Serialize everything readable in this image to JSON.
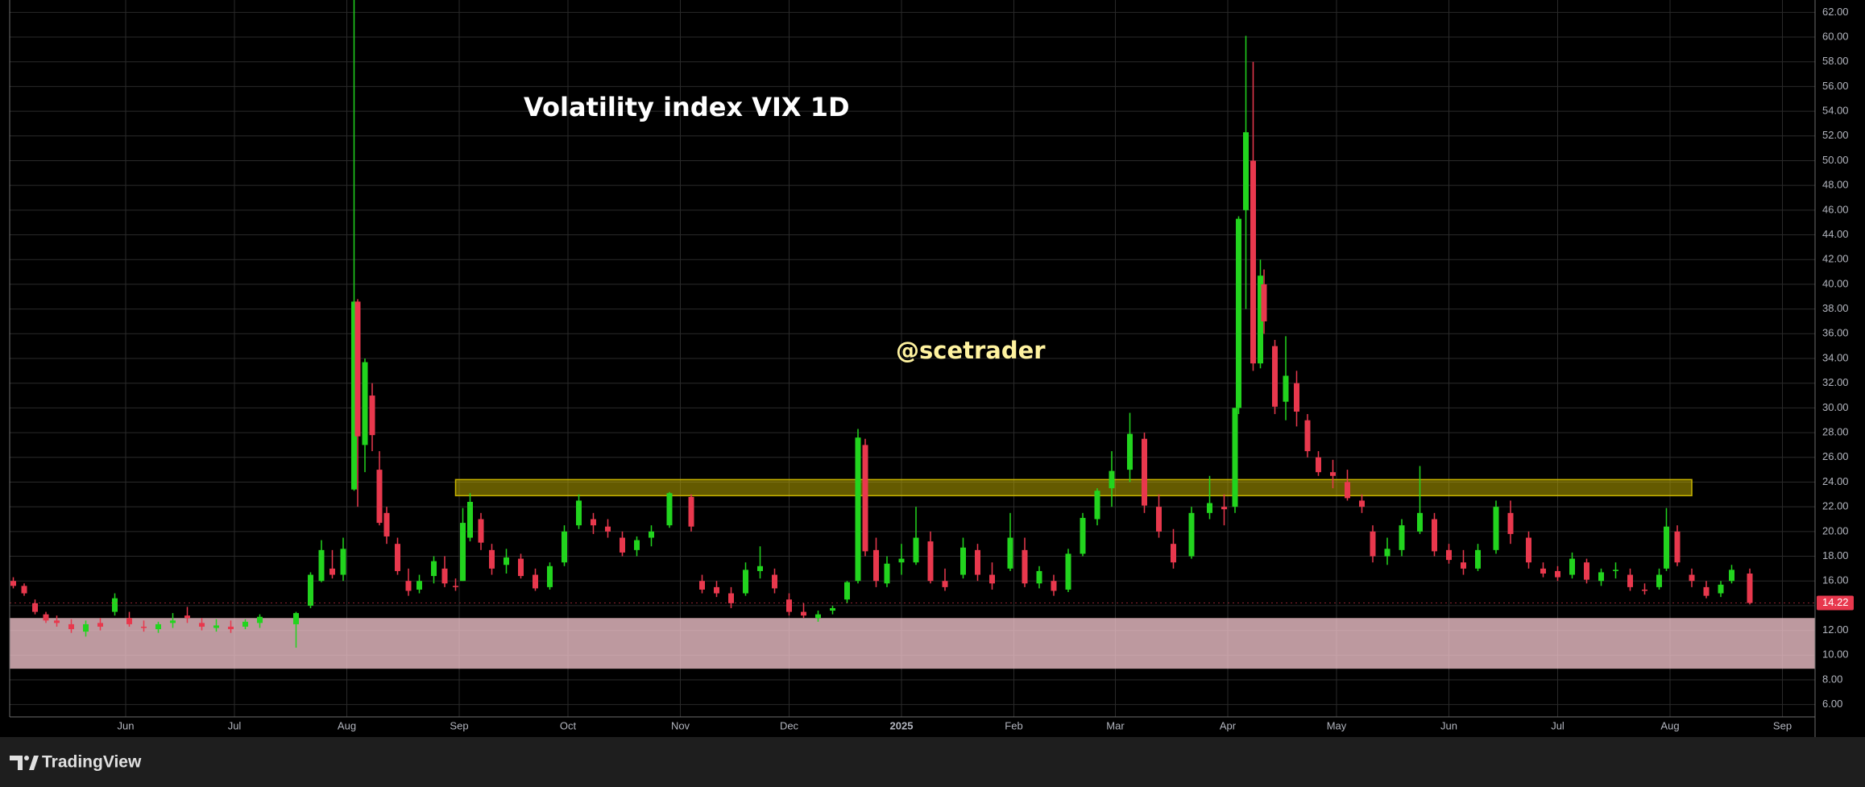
{
  "chart_data": {
    "type": "candlestick",
    "title": "Volatility index VIX 1D",
    "annotation": "@scetrader",
    "brand": "TradingView",
    "up_color": "#22d41e",
    "down_color": "#e8384d",
    "grid": true,
    "xlim": [
      -1,
      497
    ],
    "xticks": [
      {
        "value": 31,
        "label": "Jun"
      },
      {
        "value": 61,
        "label": "Jul"
      },
      {
        "value": 92,
        "label": "Aug"
      },
      {
        "value": 123,
        "label": "Sep"
      },
      {
        "value": 153,
        "label": "Oct"
      },
      {
        "value": 184,
        "label": "Nov"
      },
      {
        "value": 214,
        "label": "Dec"
      },
      {
        "value": 245,
        "label": "2025"
      },
      {
        "value": 276,
        "label": "Feb"
      },
      {
        "value": 304,
        "label": "Mar"
      },
      {
        "value": 335,
        "label": "Apr"
      },
      {
        "value": 365,
        "label": "May"
      },
      {
        "value": 396,
        "label": "Jun"
      },
      {
        "value": 426,
        "label": "Jul"
      },
      {
        "value": 457,
        "label": "Aug"
      },
      {
        "value": 488,
        "label": "Sep"
      }
    ],
    "ylim": [
      5,
      63
    ],
    "yticks": [
      {
        "value": 6,
        "label": "6.00"
      },
      {
        "value": 8,
        "label": "8.00"
      },
      {
        "value": 10,
        "label": "10.00"
      },
      {
        "value": 12,
        "label": "12.00"
      },
      {
        "value": 14,
        "label": "14.00"
      },
      {
        "value": 16,
        "label": "16.00"
      },
      {
        "value": 18,
        "label": "18.00"
      },
      {
        "value": 20,
        "label": "20.00"
      },
      {
        "value": 22,
        "label": "22.00"
      },
      {
        "value": 24,
        "label": "24.00"
      },
      {
        "value": 26,
        "label": "26.00"
      },
      {
        "value": 28,
        "label": "28.00"
      },
      {
        "value": 30,
        "label": "30.00"
      },
      {
        "value": 32,
        "label": "32.00"
      },
      {
        "value": 34,
        "label": "34.00"
      },
      {
        "value": 36,
        "label": "36.00"
      },
      {
        "value": 38,
        "label": "38.00"
      },
      {
        "value": 40,
        "label": "40.00"
      },
      {
        "value": 42,
        "label": "42.00"
      },
      {
        "value": 44,
        "label": "44.00"
      },
      {
        "value": 46,
        "label": "46.00"
      },
      {
        "value": 48,
        "label": "48.00"
      },
      {
        "value": 50,
        "label": "50.00"
      },
      {
        "value": 52,
        "label": "52.00"
      },
      {
        "value": 54,
        "label": "54.00"
      },
      {
        "value": 56,
        "label": "56.00"
      },
      {
        "value": 58,
        "label": "58.00"
      },
      {
        "value": 60,
        "label": "60.00"
      },
      {
        "value": 62,
        "label": "62.00"
      }
    ],
    "zones": [
      {
        "x": [
          122,
          463
        ],
        "y": [
          22.9,
          24.2
        ],
        "color": "#c8b400"
      },
      {
        "y": [
          8.9,
          13.0
        ],
        "color": "#f2c4cc"
      }
    ],
    "x": [
      0,
      3,
      6,
      9,
      12,
      16,
      20,
      24,
      28,
      32,
      36,
      40,
      44,
      48,
      52,
      56,
      60,
      64,
      68,
      78,
      82,
      85,
      88,
      91,
      94,
      95,
      97,
      99,
      101,
      103,
      106,
      109,
      112,
      116,
      119,
      122,
      124,
      126,
      129,
      132,
      136,
      140,
      144,
      148,
      152,
      156,
      160,
      164,
      168,
      172,
      176,
      181,
      187,
      190,
      194,
      198,
      202,
      206,
      210,
      214,
      218,
      222,
      226,
      230,
      233,
      235,
      238,
      241,
      245,
      249,
      253,
      257,
      262,
      266,
      270,
      275,
      279,
      283,
      287,
      291,
      295,
      299,
      303,
      308,
      312,
      316,
      320,
      325,
      330,
      334,
      337,
      338,
      340,
      342,
      344,
      345,
      348,
      351,
      354,
      357,
      360,
      364,
      368,
      372,
      375,
      379,
      383,
      388,
      392,
      396,
      400,
      404,
      409,
      413,
      418,
      422,
      426,
      430,
      434,
      438,
      442,
      446,
      450,
      454,
      456,
      459,
      463,
      467,
      471,
      474,
      479
    ],
    "open": [
      16,
      15.6,
      14.2,
      13.3,
      12.8,
      12.5,
      11.9,
      12.6,
      13.5,
      13,
      12.3,
      12.1,
      12.6,
      13.2,
      12.6,
      12.2,
      12.3,
      12.3,
      12.6,
      12.5,
      14,
      16,
      17,
      16.5,
      23.4,
      38.6,
      27,
      31,
      25,
      21.5,
      19,
      16,
      15.3,
      16.4,
      17,
      15.6,
      16,
      19.5,
      21,
      18.5,
      17.3,
      17.8,
      16.5,
      15.5,
      17.5,
      20.5,
      21,
      20.4,
      19.5,
      18.5,
      19.5,
      20.5,
      22.8,
      16,
      15.5,
      15,
      15,
      16.8,
      16.5,
      14.5,
      13.5,
      13,
      13.6,
      14.5,
      16,
      27,
      18.5,
      15.8,
      17.5,
      17.5,
      19.2,
      16,
      16.5,
      18.5,
      16.5,
      17,
      18.5,
      15.8,
      16,
      15.3,
      18.2,
      21,
      23.5,
      25,
      27.5,
      22,
      19,
      18,
      21.5,
      22,
      22,
      30,
      46,
      50,
      33.6,
      40,
      35,
      30.5,
      32,
      29,
      26,
      24.8,
      24,
      22.5,
      20,
      18,
      18.5,
      20,
      21,
      18.5,
      17.5,
      17,
      18.5,
      21.5,
      19.5,
      17,
      16.8,
      16.5,
      17.5,
      16,
      16.8,
      16.5,
      15.3,
      15.5,
      17,
      20,
      16.5,
      15.5,
      15,
      16,
      16.6
    ],
    "high": [
      16.3,
      15.8,
      14.5,
      13.5,
      13.2,
      12.9,
      12.8,
      13,
      15,
      13.5,
      12.8,
      12.7,
      13.4,
      13.9,
      13,
      12.9,
      12.8,
      12.9,
      13.3,
      13.5,
      16.7,
      19.3,
      18.5,
      19.5,
      65.7,
      38.8,
      34,
      32,
      26.5,
      22,
      19.5,
      17,
      16.5,
      18,
      18,
      16.2,
      21.9,
      23.1,
      21.5,
      19,
      18.6,
      18.2,
      17,
      17.5,
      20.5,
      23,
      21.5,
      21,
      20,
      19.6,
      20.5,
      23.2,
      23,
      16.5,
      16,
      15.5,
      17.5,
      18.8,
      17,
      15,
      14.2,
      13.6,
      14,
      16,
      28.3,
      27.5,
      19.5,
      18,
      19,
      22,
      20,
      17,
      19.5,
      19,
      17.5,
      21.5,
      19.5,
      17.2,
      16.5,
      18.6,
      21.5,
      23.5,
      26.5,
      29.6,
      28,
      23,
      20.2,
      22,
      24.5,
      23,
      30,
      45.5,
      60.1,
      58,
      42,
      41.2,
      35.5,
      35.8,
      33,
      29.5,
      26.5,
      25.8,
      25,
      23,
      20.5,
      19.5,
      21,
      25.3,
      21.5,
      19,
      18.5,
      19,
      22.5,
      22.5,
      20,
      17.5,
      17.2,
      18.3,
      17.8,
      17,
      17.5,
      17,
      15.8,
      17,
      21.9,
      20.5,
      17,
      16,
      16,
      17.3,
      17
    ],
    "low": [
      15.4,
      14.8,
      13.3,
      12.6,
      12.3,
      11.8,
      11.5,
      12,
      13.2,
      12.3,
      11.9,
      11.8,
      12.2,
      12.6,
      12,
      11.9,
      11.8,
      12.1,
      12.2,
      10.6,
      13.8,
      15.9,
      16.2,
      16,
      23.3,
      22,
      24.8,
      26.5,
      20.5,
      19,
      16.5,
      14.8,
      15,
      15.8,
      15.5,
      15.2,
      16,
      19.2,
      18.5,
      16.5,
      16.6,
      16.2,
      15.2,
      15.3,
      17.2,
      20.2,
      19.8,
      19.5,
      18,
      18,
      18.8,
      20.3,
      20,
      15,
      14.7,
      13.8,
      14.8,
      16.2,
      15,
      13.2,
      13,
      12.7,
      13.3,
      14.2,
      15.8,
      18,
      15.5,
      15.5,
      16.5,
      17.3,
      15.8,
      15.2,
      16.2,
      16,
      15.3,
      16.8,
      15.5,
      15.4,
      14.8,
      15.1,
      18,
      20.5,
      22,
      24,
      21.5,
      19.5,
      17,
      17.8,
      21,
      20.5,
      21.5,
      29.5,
      38,
      33,
      33.2,
      36,
      29.5,
      29,
      28.5,
      26,
      24.5,
      23.5,
      22.5,
      21.5,
      17.5,
      17.3,
      18,
      19.8,
      18,
      17.4,
      16.5,
      16.8,
      18.2,
      19,
      17,
      16.3,
      16,
      16.2,
      15.8,
      15.6,
      16.2,
      15.2,
      14.9,
      15.3,
      16.8,
      17.2,
      15.5,
      14.6,
      14.7,
      15.8,
      14.1
    ],
    "close": [
      15.6,
      15,
      13.5,
      12.8,
      12.6,
      12.1,
      12.5,
      12.3,
      14.6,
      12.5,
      12.2,
      12.5,
      12.8,
      13,
      12.3,
      12.4,
      12.1,
      12.7,
      13.1,
      13.4,
      16.5,
      18.5,
      16.5,
      18.6,
      38.6,
      27.7,
      33.7,
      27.8,
      20.7,
      19.6,
      16.8,
      15.2,
      16,
      17.6,
      15.8,
      15.5,
      20.7,
      22.4,
      19.1,
      17,
      17.9,
      16.4,
      15.4,
      17.2,
      20,
      22.5,
      20.5,
      20,
      18.3,
      19.3,
      20,
      23.1,
      20.4,
      15.3,
      15,
      14.2,
      16.9,
      17.2,
      15.4,
      13.5,
      13.2,
      13.3,
      13.8,
      15.9,
      27.6,
      18.4,
      16,
      17.4,
      17.8,
      19.5,
      16,
      15.5,
      18.7,
      16.5,
      15.8,
      19.5,
      15.8,
      16.8,
      15.2,
      18.2,
      21.1,
      23.3,
      24.9,
      27.9,
      22.1,
      20,
      17.5,
      21.5,
      22.3,
      21.8,
      30,
      45.3,
      52.3,
      33.6,
      40.7,
      37,
      30.1,
      32.6,
      29.7,
      26.5,
      24.8,
      24.5,
      22.7,
      22,
      18,
      18.6,
      20.5,
      21.5,
      18.4,
      17.7,
      17,
      18.5,
      22,
      19.8,
      17.5,
      16.6,
      16.3,
      17.8,
      16.1,
      16.7,
      16.9,
      15.5,
      15.2,
      16.5,
      20.4,
      17.5,
      16,
      14.8,
      15.7,
      16.9,
      14.22
    ]
  }
}
